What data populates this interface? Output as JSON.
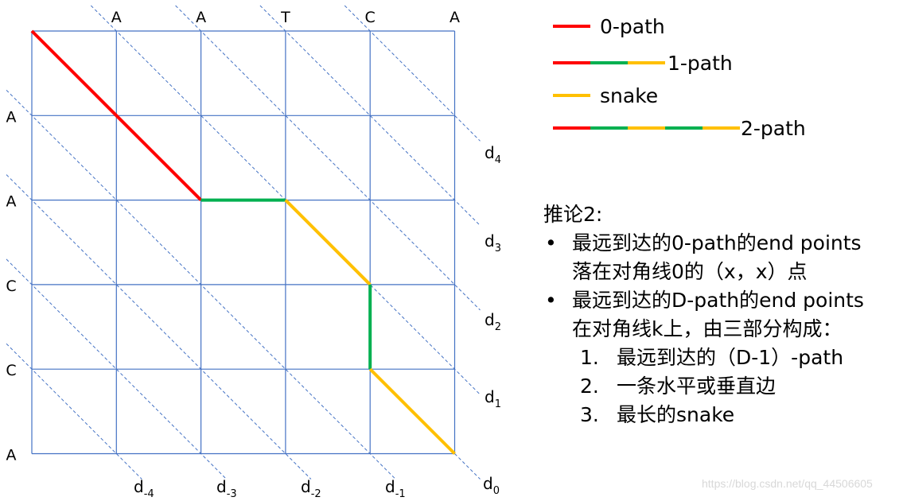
{
  "colors": {
    "grid": "#4472c4",
    "diagonal": "#4472c4",
    "zero_path": "#ff0000",
    "horizontal_vertical_edge": "#00b050",
    "snake": "#ffc000"
  },
  "grid": {
    "top_sequence": [
      "A",
      "A",
      "T",
      "C",
      "A"
    ],
    "left_sequence": [
      "A",
      "A",
      "C",
      "C",
      "A"
    ]
  },
  "diagonals": [
    {
      "index": -4,
      "base": "d",
      "sub": "-4"
    },
    {
      "index": -3,
      "base": "d",
      "sub": "-3"
    },
    {
      "index": -2,
      "base": "d",
      "sub": "-2"
    },
    {
      "index": -1,
      "base": "d",
      "sub": "-1"
    },
    {
      "index": 0,
      "base": "d",
      "sub": "0"
    },
    {
      "index": 1,
      "base": "d",
      "sub": "1"
    },
    {
      "index": 2,
      "base": "d",
      "sub": "2"
    },
    {
      "index": 3,
      "base": "d",
      "sub": "3"
    },
    {
      "index": 4,
      "base": "d",
      "sub": "4"
    }
  ],
  "path": [
    {
      "type": "0-path",
      "from": [
        0,
        0
      ],
      "to": [
        2,
        2
      ]
    },
    {
      "type": "edge",
      "from": [
        2,
        2
      ],
      "to": [
        3,
        2
      ]
    },
    {
      "type": "snake",
      "from": [
        3,
        2
      ],
      "to": [
        4,
        3
      ]
    },
    {
      "type": "edge",
      "from": [
        4,
        3
      ],
      "to": [
        4,
        4
      ]
    },
    {
      "type": "snake",
      "from": [
        4,
        4
      ],
      "to": [
        5,
        5
      ]
    }
  ],
  "legend": [
    {
      "label": "0-path",
      "segments": [
        "red"
      ]
    },
    {
      "label": "1-path",
      "segments": [
        "red",
        "green",
        "yellow"
      ]
    },
    {
      "label": "snake",
      "segments": [
        "yellow"
      ]
    },
    {
      "label": "2-path",
      "segments": [
        "red",
        "green",
        "yellow",
        "green",
        "yellow"
      ]
    }
  ],
  "notes": {
    "title": "推论2:",
    "bullets": [
      {
        "line1": "最远到达的0-path的end points",
        "line2": "落在对角线0的（x，x）点"
      },
      {
        "line1": "最远到达的D-path的end points",
        "line2": "在对角线k上，由三部分构成："
      }
    ],
    "steps": [
      {
        "num": "1.",
        "text": "最远到达的（D-1）-path"
      },
      {
        "num": "2.",
        "text": "一条水平或垂直边"
      },
      {
        "num": "3.",
        "text": "最长的snake"
      }
    ]
  },
  "watermark": "https://blog.csdn.net/qq_44506605"
}
